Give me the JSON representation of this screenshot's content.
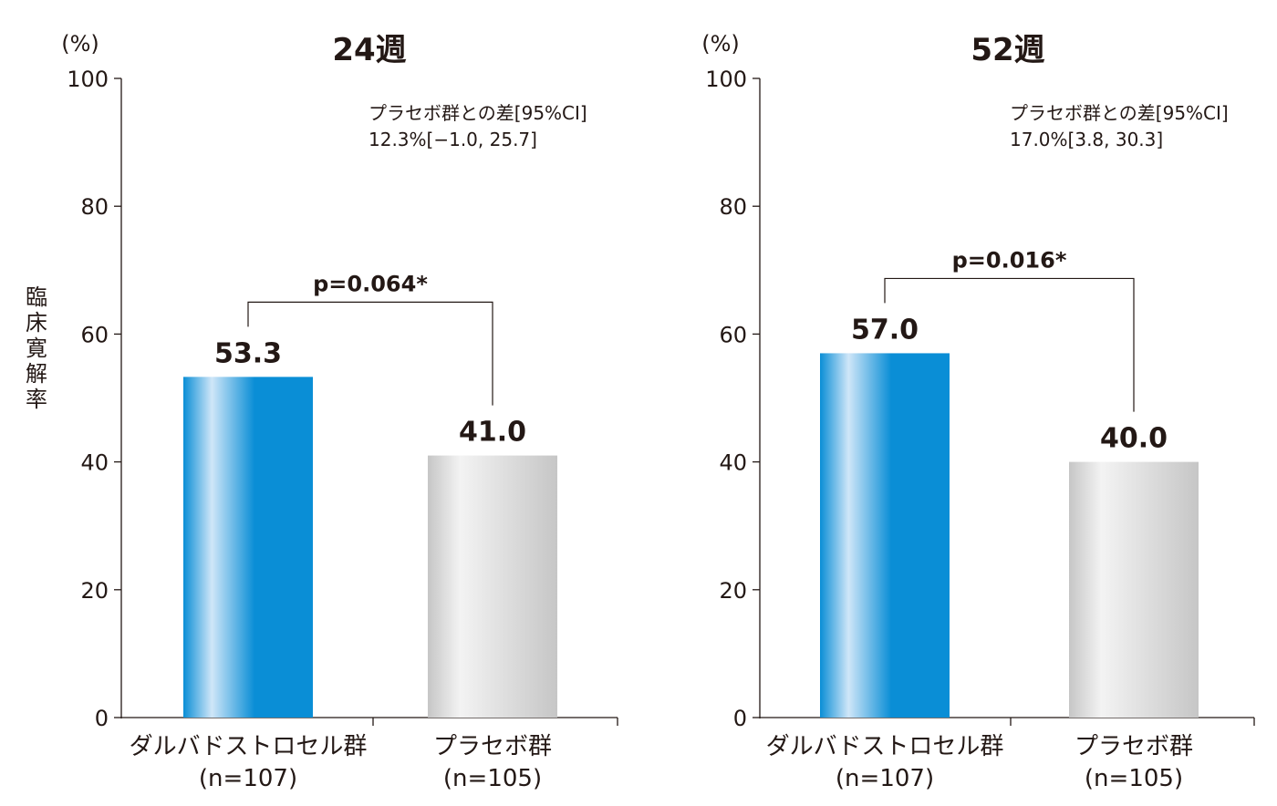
{
  "y_axis_label": "臨床寛解率",
  "chart_data": [
    {
      "type": "bar",
      "title": "24週",
      "unit": "(%)",
      "ylim": [
        0,
        100
      ],
      "yticks": [
        0,
        20,
        40,
        60,
        80,
        100
      ],
      "categories": [
        {
          "name": "ダルバドストロセル群",
          "n": "(n=107)"
        },
        {
          "name": "プラセボ群",
          "n": "(n=105)"
        }
      ],
      "values": [
        53.3,
        41.0
      ],
      "value_labels": [
        "53.3",
        "41.0"
      ],
      "p_value": "p=0.064*",
      "difference": {
        "line1": "プラセボ群との差[95%CI]",
        "line2": "12.3%[−1.0, 25.7]"
      }
    },
    {
      "type": "bar",
      "title": "52週",
      "unit": "(%)",
      "ylim": [
        0,
        100
      ],
      "yticks": [
        0,
        20,
        40,
        60,
        80,
        100
      ],
      "categories": [
        {
          "name": "ダルバドストロセル群",
          "n": "(n=107)"
        },
        {
          "name": "プラセボ群",
          "n": "(n=105)"
        }
      ],
      "values": [
        57.0,
        40.0
      ],
      "value_labels": [
        "57.0",
        "40.0"
      ],
      "p_value": "p=0.016*",
      "difference": {
        "line1": "プラセボ群との差[95%CI]",
        "line2": "17.0%[3.8, 30.3]"
      }
    }
  ],
  "colors": {
    "treatment_dark": "#0a8ed6",
    "treatment_light": "#cfe6f8",
    "placebo_dark": "#c6c6c6",
    "placebo_light": "#f3f3f3",
    "axis": "#231815"
  }
}
